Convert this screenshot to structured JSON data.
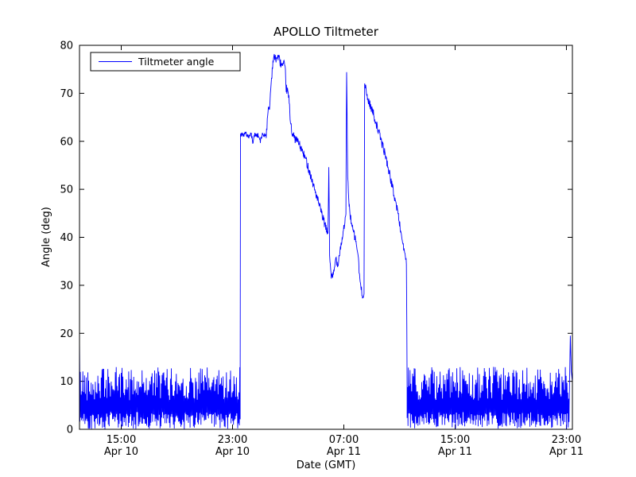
{
  "chart_data": {
    "type": "line",
    "title": "APOLLO Tiltmeter",
    "xlabel": "Date (GMT)",
    "ylabel": "Angle (deg)",
    "ylim": [
      0,
      80
    ],
    "yticks": [
      0,
      10,
      20,
      30,
      40,
      50,
      60,
      70,
      80
    ],
    "x_hours_range": [
      0,
      35.43
    ],
    "xticks": [
      {
        "t": 3,
        "time": "15:00",
        "date": "Apr 10"
      },
      {
        "t": 11,
        "time": "23:00",
        "date": "Apr 10"
      },
      {
        "t": 19,
        "time": "07:00",
        "date": "Apr 11"
      },
      {
        "t": 27,
        "time": "15:00",
        "date": "Apr 11"
      },
      {
        "t": 35,
        "time": "23:00",
        "date": "Apr 11"
      }
    ],
    "legend": {
      "label": "Tiltmeter angle",
      "position": "upper left"
    },
    "line_color": "#0000ff",
    "grid": false,
    "seed": 42,
    "series": {
      "name": "Tiltmeter angle",
      "segments": [
        {
          "type": "path",
          "noise": 0,
          "points": [
            [
              0,
              19
            ],
            [
              0.03,
              6
            ]
          ]
        },
        {
          "type": "noise",
          "t0": 0.03,
          "t1": 11.55,
          "low": 0,
          "mid": 6,
          "high": 13
        },
        {
          "type": "path",
          "noise": 0.5,
          "points": [
            [
              11.55,
              8
            ],
            [
              11.57,
              61.5
            ],
            [
              11.75,
              61.4
            ],
            [
              11.95,
              61.6
            ],
            [
              12.15,
              61.0
            ],
            [
              12.35,
              61.5
            ],
            [
              12.45,
              59.8
            ],
            [
              12.6,
              61.4
            ],
            [
              12.85,
              61.2
            ],
            [
              13.0,
              60.0
            ],
            [
              13.15,
              61.5
            ],
            [
              13.3,
              61.3
            ],
            [
              13.42,
              61.5
            ]
          ]
        },
        {
          "type": "path",
          "noise": 0.9,
          "points": [
            [
              13.42,
              61.5
            ],
            [
              13.5,
              64
            ],
            [
              13.6,
              67.5
            ],
            [
              13.66,
              66.5
            ],
            [
              13.72,
              70
            ],
            [
              13.8,
              73
            ],
            [
              13.88,
              76
            ],
            [
              13.95,
              77.5
            ],
            [
              14.1,
              77.2
            ],
            [
              14.3,
              77.6
            ],
            [
              14.45,
              76.3
            ],
            [
              14.6,
              75.6
            ],
            [
              14.7,
              76.0
            ],
            [
              14.8,
              74.5
            ],
            [
              14.86,
              71
            ],
            [
              14.95,
              70.5
            ],
            [
              15.05,
              69
            ],
            [
              15.14,
              65
            ],
            [
              15.3,
              61.5
            ],
            [
              15.5,
              60.5
            ],
            [
              15.7,
              60
            ],
            [
              16.0,
              58
            ],
            [
              16.3,
              56
            ],
            [
              16.6,
              53
            ],
            [
              16.9,
              50
            ],
            [
              17.1,
              48
            ],
            [
              17.4,
              45
            ],
            [
              17.6,
              43
            ],
            [
              17.8,
              41
            ],
            [
              17.86,
              41
            ],
            [
              17.92,
              55
            ],
            [
              17.98,
              36
            ],
            [
              18.1,
              32
            ],
            [
              18.2,
              31.5
            ],
            [
              18.3,
              33
            ],
            [
              18.45,
              36
            ],
            [
              18.55,
              34
            ],
            [
              18.7,
              37
            ],
            [
              18.9,
              40
            ],
            [
              19.05,
              43
            ],
            [
              19.15,
              44
            ],
            [
              19.2,
              75
            ],
            [
              19.28,
              52
            ],
            [
              19.4,
              46
            ],
            [
              19.6,
              42
            ],
            [
              19.8,
              40
            ],
            [
              20.0,
              37
            ],
            [
              20.1,
              33
            ],
            [
              20.2,
              30
            ],
            [
              20.32,
              28
            ],
            [
              20.45,
              28.5
            ],
            [
              20.5,
              72
            ],
            [
              20.7,
              69
            ],
            [
              20.9,
              67.5
            ],
            [
              21.1,
              66
            ],
            [
              21.4,
              63
            ],
            [
              21.7,
              60
            ],
            [
              22.0,
              57
            ],
            [
              22.3,
              53
            ],
            [
              22.6,
              49
            ],
            [
              22.9,
              45
            ],
            [
              23.1,
              41
            ],
            [
              23.3,
              38
            ],
            [
              23.42,
              35.5
            ],
            [
              23.5,
              35
            ],
            [
              23.55,
              9
            ]
          ]
        },
        {
          "type": "noise",
          "t0": 23.55,
          "t1": 35.2,
          "low": 0,
          "mid": 6,
          "high": 13
        },
        {
          "type": "path",
          "noise": 0,
          "points": [
            [
              35.2,
              5
            ],
            [
              35.28,
              19.5
            ],
            [
              35.35,
              12
            ],
            [
              35.43,
              10
            ]
          ]
        }
      ]
    }
  }
}
